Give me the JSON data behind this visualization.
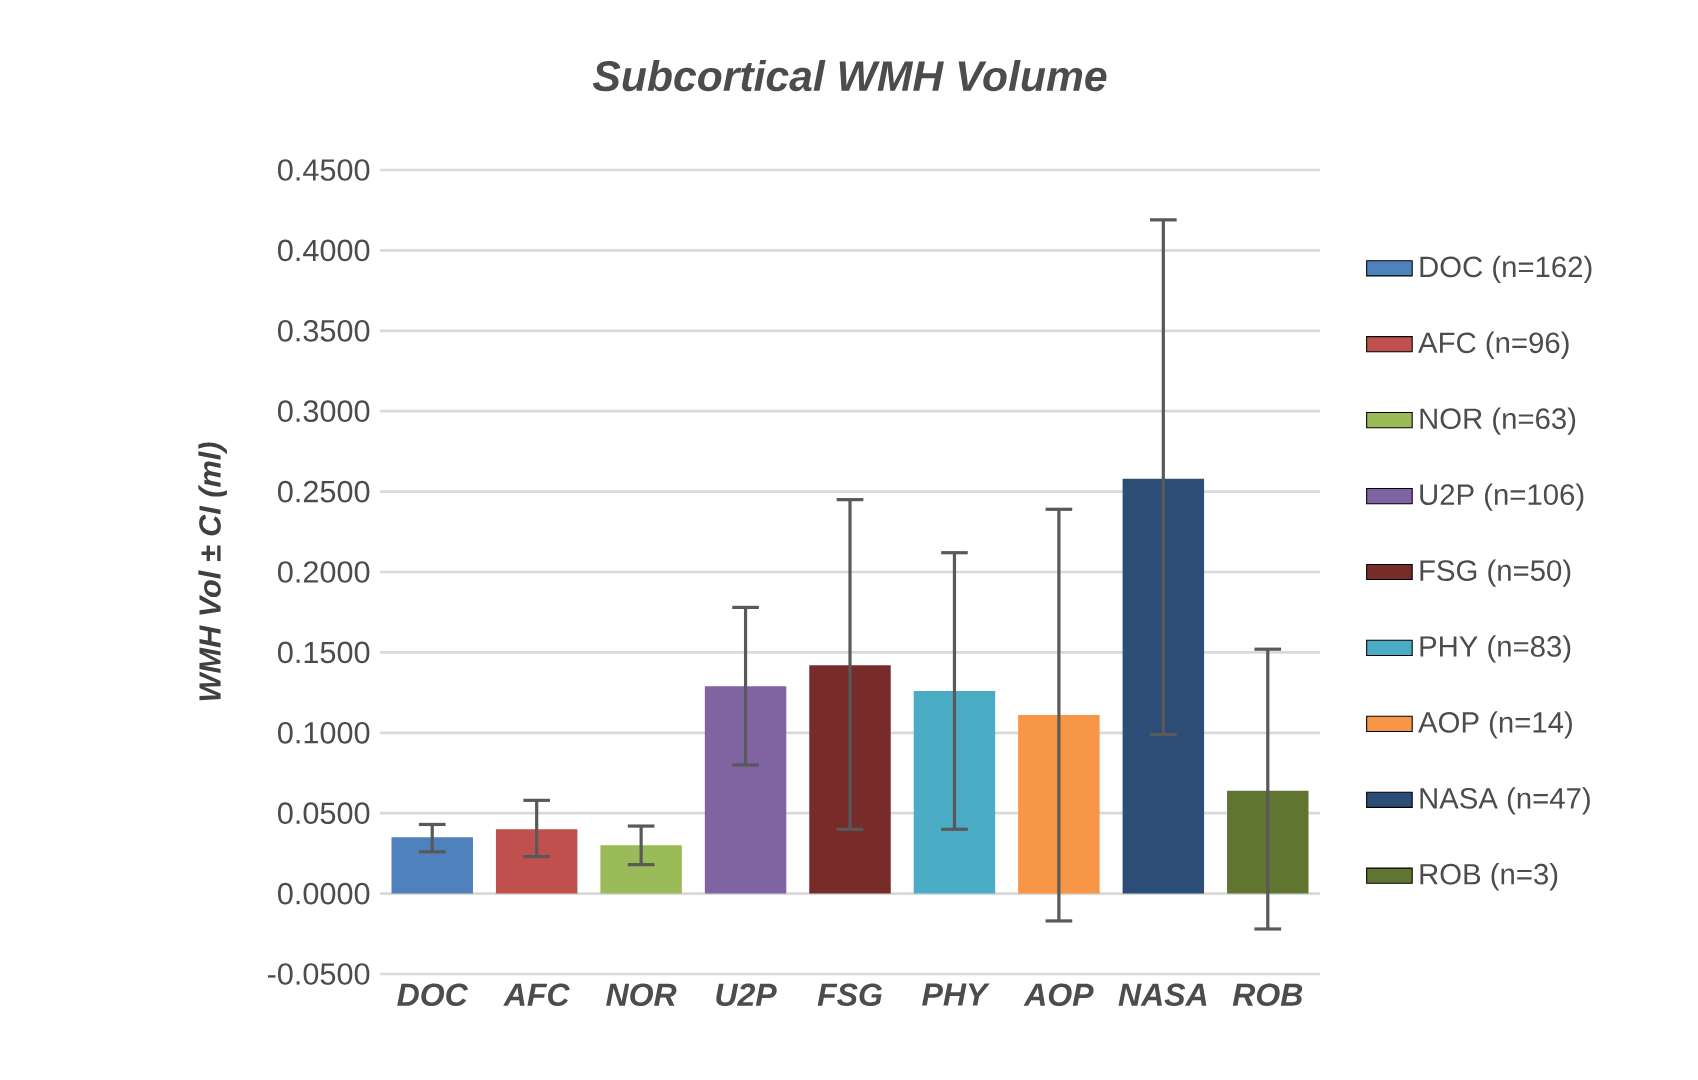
{
  "chart_data": {
    "type": "bar",
    "title": "Subcortical WMH Volume",
    "ylabel": "WMH Vol ± CI (ml)",
    "categories": [
      "DOC",
      "AFC",
      "NOR",
      "U2P",
      "FSG",
      "PHY",
      "AOP",
      "NASA",
      "ROB"
    ],
    "series": [
      {
        "name": "DOC (n=162)",
        "color": "#4f81bd",
        "values": [
          0.035,
          null,
          null,
          null,
          null,
          null,
          null,
          null,
          null
        ],
        "errors": [
          [
            0.026,
            0.043
          ],
          null,
          null,
          null,
          null,
          null,
          null,
          null,
          null
        ]
      },
      {
        "name": "AFC (n=96)",
        "color": "#c0504d",
        "values": [
          null,
          0.04,
          null,
          null,
          null,
          null,
          null,
          null,
          null
        ],
        "errors": [
          null,
          [
            0.023,
            0.058
          ],
          null,
          null,
          null,
          null,
          null,
          null,
          null
        ]
      },
      {
        "name": "NOR (n=63)",
        "color": "#9bbb59",
        "values": [
          null,
          null,
          0.03,
          null,
          null,
          null,
          null,
          null,
          null
        ],
        "errors": [
          null,
          null,
          [
            0.018,
            0.042
          ],
          null,
          null,
          null,
          null,
          null,
          null
        ]
      },
      {
        "name": "U2P (n=106)",
        "color": "#8064a2",
        "values": [
          null,
          null,
          null,
          0.129,
          null,
          null,
          null,
          null,
          null
        ],
        "errors": [
          null,
          null,
          null,
          [
            0.08,
            0.178
          ],
          null,
          null,
          null,
          null,
          null
        ]
      },
      {
        "name": "FSG (n=50)",
        "color": "#772c2a",
        "values": [
          null,
          null,
          null,
          null,
          0.142,
          null,
          null,
          null,
          null
        ],
        "errors": [
          null,
          null,
          null,
          null,
          [
            0.04,
            0.245
          ],
          null,
          null,
          null,
          null
        ]
      },
      {
        "name": "PHY (n=83)",
        "color": "#4bacc6",
        "values": [
          null,
          null,
          null,
          null,
          null,
          0.126,
          null,
          null,
          null
        ],
        "errors": [
          null,
          null,
          null,
          null,
          null,
          [
            0.04,
            0.212
          ],
          null,
          null,
          null
        ]
      },
      {
        "name": "AOP (n=14)",
        "color": "#f79646",
        "values": [
          null,
          null,
          null,
          null,
          null,
          null,
          0.111,
          null,
          null
        ],
        "errors": [
          null,
          null,
          null,
          null,
          null,
          null,
          [
            -0.017,
            0.239
          ],
          null,
          null
        ]
      },
      {
        "name": "NASA (n=47)",
        "color": "#2c4d75",
        "values": [
          null,
          null,
          null,
          null,
          null,
          null,
          null,
          0.258,
          null
        ],
        "errors": [
          null,
          null,
          null,
          null,
          null,
          null,
          null,
          [
            0.099,
            0.419
          ],
          null
        ]
      },
      {
        "name": "ROB (n=3)",
        "color": "#5f7530",
        "values": [
          null,
          null,
          null,
          null,
          null,
          null,
          null,
          null,
          0.064
        ],
        "errors": [
          null,
          null,
          null,
          null,
          null,
          null,
          null,
          null,
          [
            -0.022,
            0.152
          ]
        ]
      }
    ],
    "ylim": [
      -0.05,
      0.45
    ],
    "yticks": [
      {
        "value": -0.05,
        "label": "-0.0500"
      },
      {
        "value": 0,
        "label": "0.0000"
      },
      {
        "value": 0.05,
        "label": "0.0500"
      },
      {
        "value": 0.1,
        "label": "0.1000"
      },
      {
        "value": 0.15,
        "label": "0.1500"
      },
      {
        "value": 0.2,
        "label": "0.2000"
      },
      {
        "value": 0.25,
        "label": "0.2500"
      },
      {
        "value": 0.3,
        "label": "0.3000"
      },
      {
        "value": 0.35,
        "label": "0.3500"
      },
      {
        "value": 0.4,
        "label": "0.4000"
      },
      {
        "value": 0.45,
        "label": "0.4500"
      }
    ],
    "grid": "y",
    "legend": "right"
  }
}
